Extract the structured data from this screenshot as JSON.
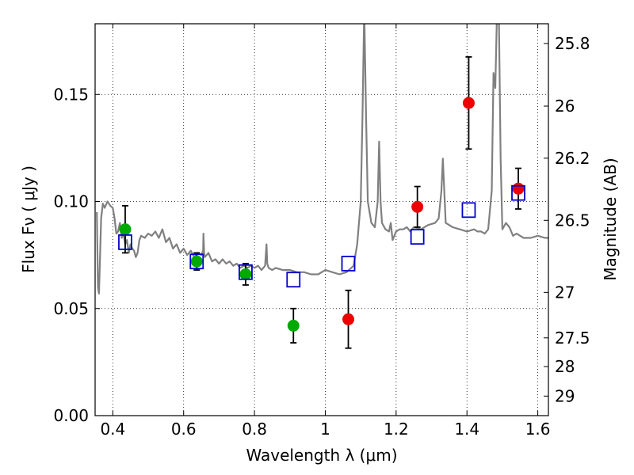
{
  "chart_data": {
    "type": "scatter",
    "xlabel": "Wavelength  λ (μm)",
    "ylabel": "Flux  Fν  ( μJy )",
    "y2label": "Magnitude (AB)",
    "xlim": [
      0.35,
      1.63
    ],
    "ylim": [
      0.0,
      0.183
    ],
    "grid": true,
    "x_ticks": [
      {
        "value": 0.4,
        "label": "0.4"
      },
      {
        "value": 0.6,
        "label": "0.6"
      },
      {
        "value": 0.8,
        "label": "0.8"
      },
      {
        "value": 1.0,
        "label": "1"
      },
      {
        "value": 1.2,
        "label": "1.2"
      },
      {
        "value": 1.4,
        "label": "1.4"
      },
      {
        "value": 1.6,
        "label": "1.6"
      }
    ],
    "y_ticks": [
      {
        "value": 0.0,
        "label": "0.00"
      },
      {
        "value": 0.05,
        "label": "0.05"
      },
      {
        "value": 0.1,
        "label": "0.10"
      },
      {
        "value": 0.15,
        "label": "0.15"
      }
    ],
    "y2_ticks": [
      {
        "value": 25.8,
        "label": "25.8"
      },
      {
        "value": 26.0,
        "label": "26"
      },
      {
        "value": 26.2,
        "label": "26.2"
      },
      {
        "value": 26.5,
        "label": "26.5"
      },
      {
        "value": 27.0,
        "label": "27"
      },
      {
        "value": 27.5,
        "label": "27.5"
      },
      {
        "value": 28.0,
        "label": "28"
      },
      {
        "value": 29.0,
        "label": "29"
      }
    ],
    "series": [
      {
        "marker": "circle",
        "color": "#00aa00",
        "points": [
          {
            "x": 0.435,
            "y": 0.087,
            "err": 0.011
          },
          {
            "x": 0.637,
            "y": 0.072,
            "err": 0.004
          },
          {
            "x": 0.775,
            "y": 0.066,
            "err": 0.005
          },
          {
            "x": 0.91,
            "y": 0.042,
            "err": 0.008
          }
        ]
      },
      {
        "marker": "circle",
        "color": "#ee0000",
        "points": [
          {
            "x": 1.065,
            "y": 0.045,
            "err": 0.0135
          },
          {
            "x": 1.26,
            "y": 0.0975,
            "err": 0.0095
          },
          {
            "x": 1.405,
            "y": 0.146,
            "err": 0.0215
          },
          {
            "x": 1.545,
            "y": 0.106,
            "err": 0.0095
          }
        ]
      },
      {
        "marker": "square-open",
        "color": "#0000cc",
        "points": [
          {
            "x": 0.435,
            "y": 0.081
          },
          {
            "x": 0.637,
            "y": 0.072
          },
          {
            "x": 0.775,
            "y": 0.067
          },
          {
            "x": 0.91,
            "y": 0.0635
          },
          {
            "x": 1.065,
            "y": 0.071
          },
          {
            "x": 1.26,
            "y": 0.0835
          },
          {
            "x": 1.405,
            "y": 0.096
          },
          {
            "x": 1.545,
            "y": 0.104
          }
        ]
      }
    ],
    "model_spectrum": {
      "color": "#808080",
      "x": [
        0.355,
        0.358,
        0.361,
        0.364,
        0.367,
        0.372,
        0.377,
        0.385,
        0.393,
        0.4,
        0.405,
        0.41,
        0.415,
        0.42,
        0.425,
        0.43,
        0.435,
        0.44,
        0.445,
        0.45,
        0.455,
        0.46,
        0.465,
        0.47,
        0.475,
        0.48,
        0.49,
        0.5,
        0.51,
        0.52,
        0.53,
        0.54,
        0.55,
        0.56,
        0.57,
        0.58,
        0.59,
        0.6,
        0.61,
        0.62,
        0.63,
        0.64,
        0.65,
        0.655,
        0.656,
        0.658,
        0.66,
        0.67,
        0.68,
        0.69,
        0.7,
        0.71,
        0.72,
        0.73,
        0.74,
        0.75,
        0.76,
        0.77,
        0.78,
        0.79,
        0.8,
        0.81,
        0.82,
        0.83,
        0.834,
        0.836,
        0.84,
        0.85,
        0.86,
        0.88,
        0.9,
        0.92,
        0.94,
        0.96,
        0.98,
        1.0,
        1.02,
        1.04,
        1.06,
        1.08,
        1.09,
        1.1,
        1.105,
        1.11,
        1.115,
        1.12,
        1.13,
        1.14,
        1.148,
        1.152,
        1.156,
        1.16,
        1.17,
        1.18,
        1.185,
        1.19,
        1.2,
        1.21,
        1.22,
        1.23,
        1.24,
        1.25,
        1.27,
        1.29,
        1.31,
        1.32,
        1.328,
        1.332,
        1.336,
        1.34,
        1.36,
        1.38,
        1.4,
        1.42,
        1.43,
        1.44,
        1.45,
        1.46,
        1.47,
        1.475,
        1.48,
        1.485,
        1.49,
        1.495,
        1.5,
        1.51,
        1.52,
        1.53,
        1.54,
        1.55,
        1.56,
        1.58,
        1.6,
        1.62,
        1.63
      ],
      "y": [
        0.095,
        0.06,
        0.057,
        0.075,
        0.092,
        0.099,
        0.097,
        0.1,
        0.098,
        0.097,
        0.092,
        0.085,
        0.086,
        0.09,
        0.083,
        0.085,
        0.08,
        0.082,
        0.076,
        0.08,
        0.078,
        0.077,
        0.074,
        0.076,
        0.082,
        0.084,
        0.083,
        0.085,
        0.084,
        0.086,
        0.083,
        0.087,
        0.081,
        0.083,
        0.078,
        0.08,
        0.076,
        0.078,
        0.075,
        0.077,
        0.074,
        0.076,
        0.075,
        0.077,
        0.085,
        0.076,
        0.074,
        0.076,
        0.072,
        0.073,
        0.071,
        0.073,
        0.071,
        0.072,
        0.07,
        0.071,
        0.069,
        0.07,
        0.069,
        0.07,
        0.069,
        0.07,
        0.068,
        0.07,
        0.08,
        0.071,
        0.069,
        0.068,
        0.069,
        0.068,
        0.068,
        0.067,
        0.067,
        0.066,
        0.066,
        0.068,
        0.067,
        0.066,
        0.067,
        0.07,
        0.08,
        0.1,
        0.14,
        0.19,
        0.14,
        0.1,
        0.09,
        0.088,
        0.1,
        0.128,
        0.1,
        0.09,
        0.087,
        0.086,
        0.09,
        0.082,
        0.086,
        0.087,
        0.087,
        0.088,
        0.086,
        0.088,
        0.087,
        0.089,
        0.09,
        0.092,
        0.105,
        0.12,
        0.105,
        0.09,
        0.088,
        0.087,
        0.086,
        0.087,
        0.086,
        0.086,
        0.085,
        0.087,
        0.105,
        0.16,
        0.153,
        0.19,
        0.19,
        0.12,
        0.087,
        0.09,
        0.088,
        0.084,
        0.085,
        0.084,
        0.083,
        0.083,
        0.084,
        0.083,
        0.083
      ]
    }
  }
}
